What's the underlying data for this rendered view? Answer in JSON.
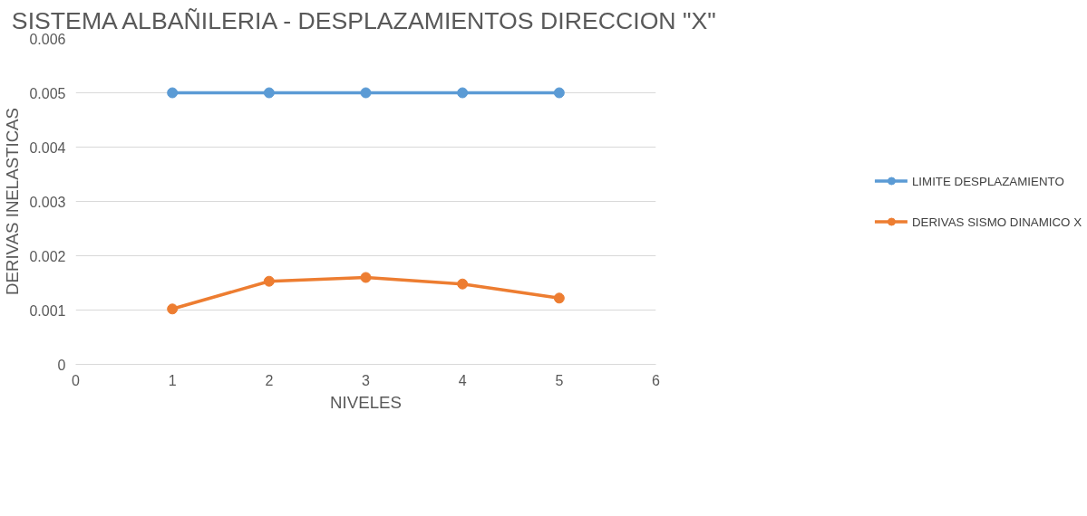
{
  "chart_data": {
    "type": "line",
    "title": "SISTEMA ALBAÑILERIA - DESPLAZAMIENTOS DIRECCION \"X\"",
    "xlabel": "NIVELES",
    "ylabel": "DERIVAS INELASTICAS",
    "x": [
      1,
      2,
      3,
      4,
      5
    ],
    "series": [
      {
        "name": "LIMITE DESPLAZAMIENTO",
        "color": "#5b9bd5",
        "values": [
          0.005,
          0.005,
          0.005,
          0.005,
          0.005
        ]
      },
      {
        "name": "DERIVAS SISMO DINAMICO X",
        "color": "#ed7d31",
        "values": [
          0.00102,
          0.00153,
          0.0016,
          0.00148,
          0.00122
        ]
      }
    ],
    "xlim": [
      0,
      6
    ],
    "xticks": [
      0,
      1,
      2,
      3,
      4,
      5,
      6
    ],
    "ylim": [
      0,
      0.006
    ],
    "yticks": [
      0,
      0.001,
      0.002,
      0.003,
      0.004,
      0.005,
      0.006
    ],
    "grid": "y",
    "legend": "right",
    "marker": "circle",
    "line_style": "solid"
  }
}
